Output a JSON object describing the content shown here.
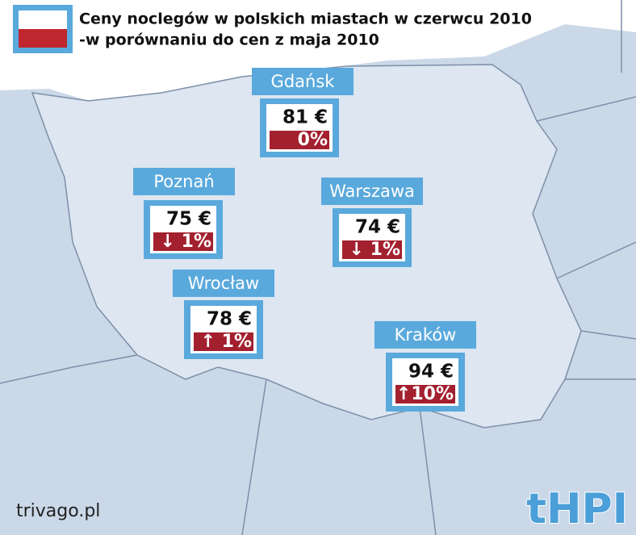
{
  "header": {
    "title_line1": "Ceny noclegów w polskich miastach w czerwcu 2010",
    "title_line2": "-w porównaniu do cen z maja 2010"
  },
  "cities": [
    {
      "name": "Gdańsk",
      "price": "81 €",
      "change": "0%"
    },
    {
      "name": "Poznań",
      "price": "75 €",
      "change": "↓ 1%"
    },
    {
      "name": "Warszawa",
      "price": "74 €",
      "change": "↓ 1%"
    },
    {
      "name": "Wrocław",
      "price": "78 €",
      "change": "↑ 1%"
    },
    {
      "name": "Kraków",
      "price": "94 €",
      "change": "↑10%"
    }
  ],
  "footer": {
    "source": "trivago.pl",
    "logo": "tHPI"
  }
}
